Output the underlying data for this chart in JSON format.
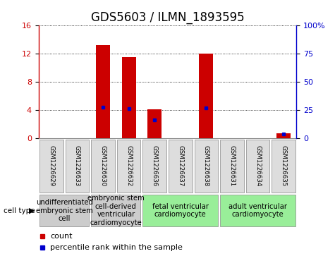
{
  "title": "GDS5603 / ILMN_1893595",
  "samples": [
    "GSM1226629",
    "GSM1226633",
    "GSM1226630",
    "GSM1226632",
    "GSM1226636",
    "GSM1226637",
    "GSM1226638",
    "GSM1226631",
    "GSM1226634",
    "GSM1226635"
  ],
  "counts": [
    0,
    0,
    13.2,
    11.5,
    4.1,
    0,
    12.0,
    0,
    0,
    0.7
  ],
  "percentiles": [
    null,
    null,
    27.5,
    26.5,
    16.0,
    null,
    27.0,
    null,
    null,
    3.5
  ],
  "ylim_left": [
    0,
    16
  ],
  "ylim_right": [
    0,
    100
  ],
  "yticks_left": [
    0,
    4,
    8,
    12,
    16
  ],
  "yticks_right": [
    0,
    25,
    50,
    75,
    100
  ],
  "yticklabels_right": [
    "0",
    "25",
    "50",
    "75",
    "100%"
  ],
  "bar_color": "#cc0000",
  "percentile_color": "#0000cc",
  "grid_color": "#000000",
  "cell_type_groups": [
    {
      "label": "undifferentiated\nembryonic stem\ncell",
      "indices": [
        0,
        1
      ],
      "bg": "#cccccc"
    },
    {
      "label": "embryonic stem\ncell-derived\nventricular\ncardiomyocyte",
      "indices": [
        2,
        3
      ],
      "bg": "#cccccc"
    },
    {
      "label": "fetal ventricular\ncardiomyocyte",
      "indices": [
        4,
        5,
        6
      ],
      "bg": "#99ee99"
    },
    {
      "label": "adult ventricular\ncardiomyocyte",
      "indices": [
        7,
        8,
        9
      ],
      "bg": "#99ee99"
    }
  ],
  "cell_type_label": "cell type",
  "legend_count_label": "count",
  "legend_percentile_label": "percentile rank within the sample",
  "bar_color_legend": "#cc0000",
  "percentile_color_legend": "#0000cc",
  "title_fontsize": 12,
  "tick_fontsize": 8,
  "sample_fontsize": 6.2,
  "group_label_fontsize": 7.2,
  "legend_fontsize": 8
}
